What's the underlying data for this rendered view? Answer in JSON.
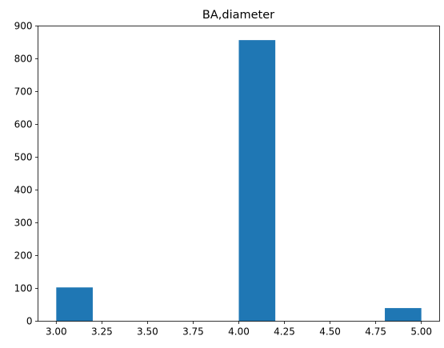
{
  "chart_data": {
    "type": "bar",
    "title": "BA,diameter",
    "xlabel": "",
    "ylabel": "",
    "xlim": [
      2.9,
      5.1
    ],
    "ylim": [
      0,
      900
    ],
    "grid": false,
    "bar_color": "#1f77b4",
    "bins": [
      {
        "start": 3.0,
        "end": 3.2,
        "count": 103
      },
      {
        "start": 3.2,
        "end": 3.4,
        "count": 0
      },
      {
        "start": 3.4,
        "end": 3.6,
        "count": 0
      },
      {
        "start": 3.6,
        "end": 3.8,
        "count": 0
      },
      {
        "start": 3.8,
        "end": 4.0,
        "count": 0
      },
      {
        "start": 4.0,
        "end": 4.2,
        "count": 857
      },
      {
        "start": 4.2,
        "end": 4.4,
        "count": 0
      },
      {
        "start": 4.4,
        "end": 4.6,
        "count": 0
      },
      {
        "start": 4.6,
        "end": 4.8,
        "count": 0
      },
      {
        "start": 4.8,
        "end": 5.0,
        "count": 40
      }
    ],
    "x_ticks": [
      "3.00",
      "3.25",
      "3.50",
      "3.75",
      "4.00",
      "4.25",
      "4.50",
      "4.75",
      "5.00"
    ],
    "y_ticks": [
      "0",
      "100",
      "200",
      "300",
      "400",
      "500",
      "600",
      "700",
      "800",
      "900"
    ]
  }
}
